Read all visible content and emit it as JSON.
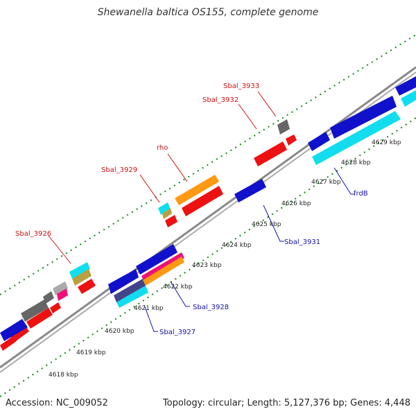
{
  "title": "Shewanella baltica OS155, complete genome",
  "accession_text": "Accession: NC_009052",
  "summary_text": "Topology: circular; Length: 5,127,376 bp; Genes: 4,448",
  "colors": {
    "red": "#ee1111",
    "blue": "#1111cc",
    "cyan": "#11ddee",
    "orange": "#ff9911",
    "gray": "#666666",
    "green_ticks": "#118811",
    "backbone": "#888888",
    "label_top": "#cc1111",
    "label_bottom": "#1111aa"
  },
  "kbp_ticks": [
    {
      "label": "4618 kbp"
    },
    {
      "label": "4619 kbp"
    },
    {
      "label": "4620 kbp"
    },
    {
      "label": "4621 kbp"
    },
    {
      "label": "4622 kbp"
    },
    {
      "label": "4623 kbp"
    },
    {
      "label": "4624 kbp"
    },
    {
      "label": "4625 kbp"
    },
    {
      "label": "4626 kbp"
    },
    {
      "label": "4627 kbp"
    },
    {
      "label": "4628 kbp"
    },
    {
      "label": "4629 kbp"
    }
  ],
  "gene_labels": [
    {
      "name": "Sbal_3926",
      "strand": "top"
    },
    {
      "name": "Sbal_3929",
      "strand": "top"
    },
    {
      "name": "rho",
      "strand": "top"
    },
    {
      "name": "Sbal_3932",
      "strand": "top"
    },
    {
      "name": "Sbal_3933",
      "strand": "top"
    },
    {
      "name": "Sbal_3927",
      "strand": "bottom"
    },
    {
      "name": "Sbal_3928",
      "strand": "bottom"
    },
    {
      "name": "Sbal_3931",
      "strand": "bottom"
    },
    {
      "name": "frdB",
      "strand": "bottom"
    }
  ]
}
